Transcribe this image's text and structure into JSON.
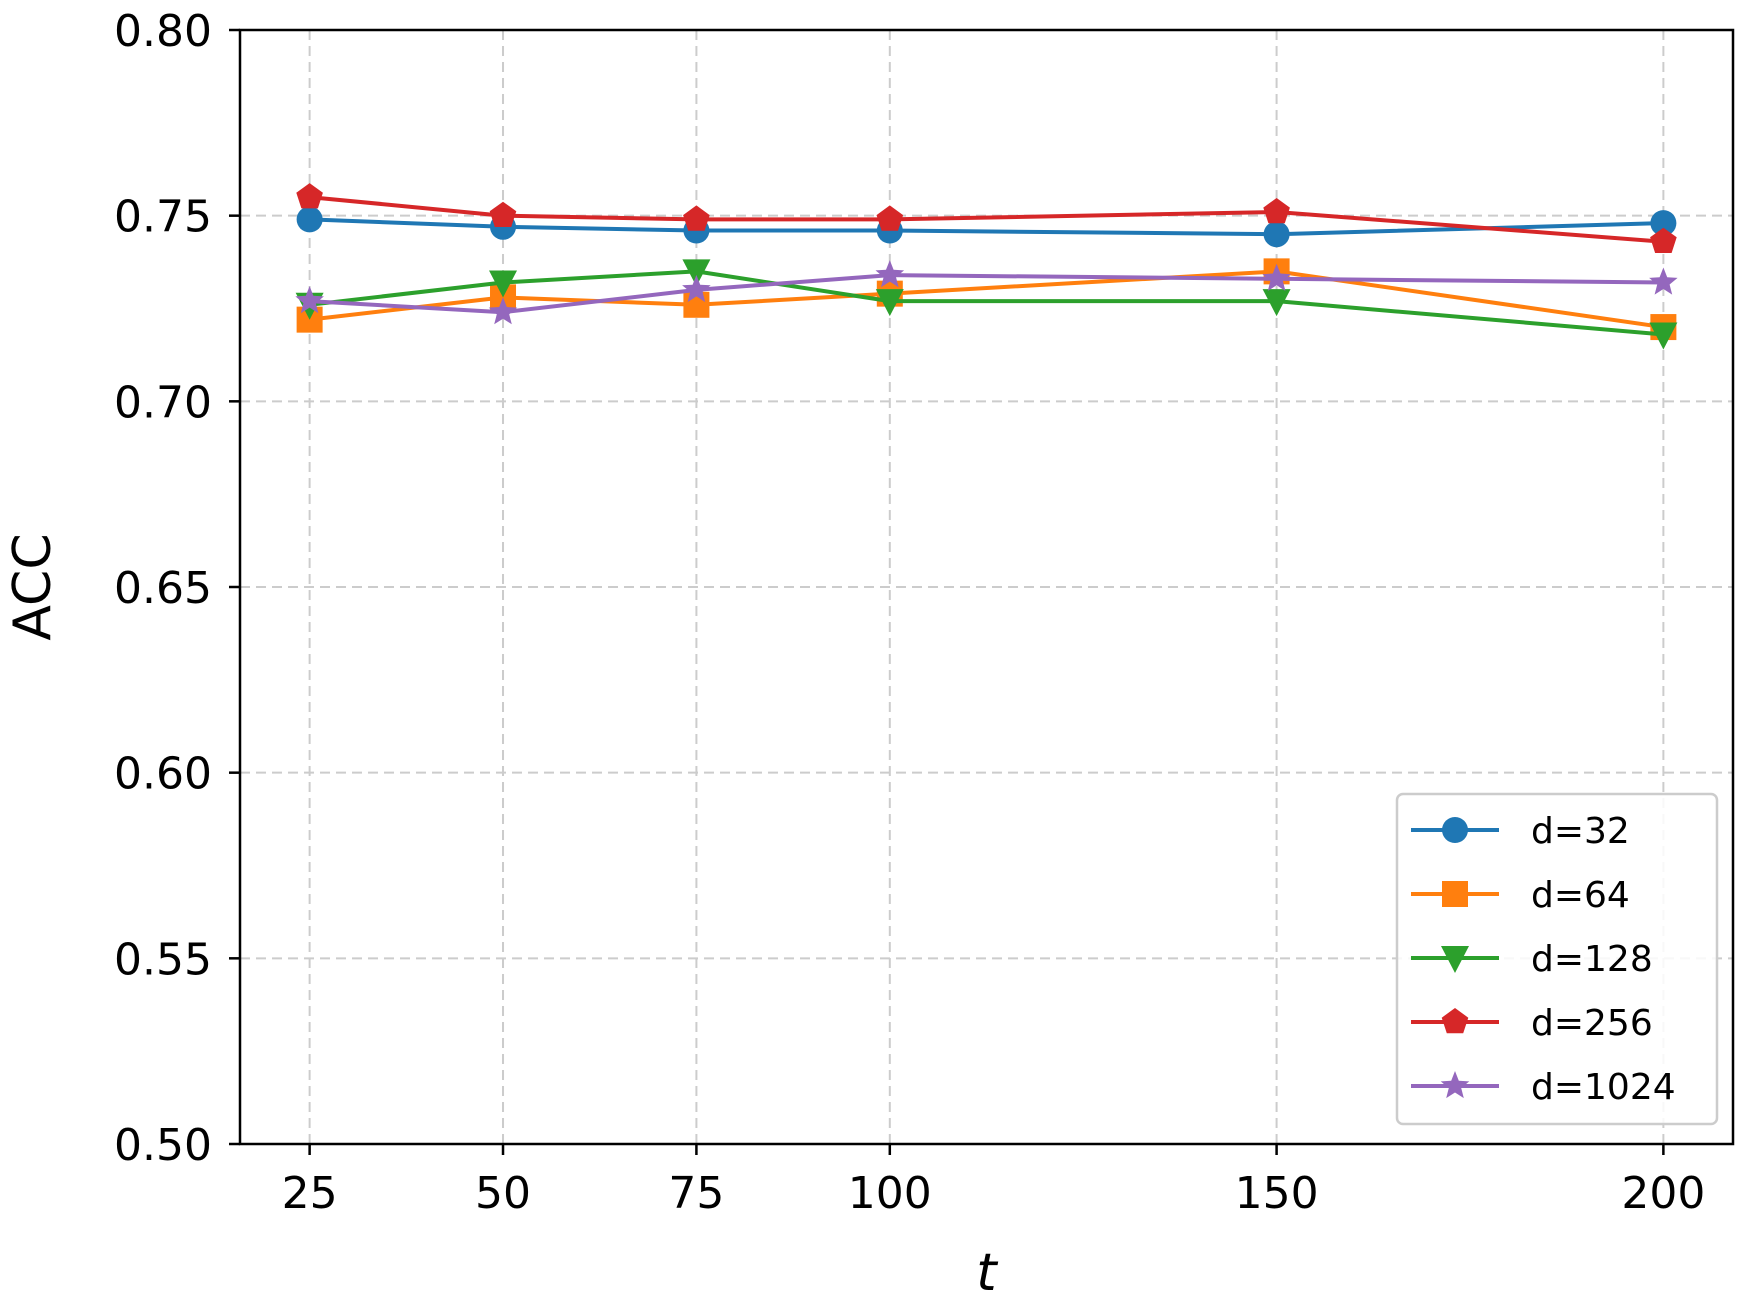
{
  "chart_data": {
    "type": "line",
    "title": "",
    "xlabel": "t",
    "ylabel": "ACC",
    "x": [
      25,
      50,
      75,
      100,
      150,
      200
    ],
    "x_tick_labels": [
      "25",
      "50",
      "75",
      "100",
      "150",
      "200"
    ],
    "xlim": [
      16,
      209
    ],
    "ylim": [
      0.5,
      0.8
    ],
    "y_ticks": [
      0.5,
      0.55,
      0.6,
      0.65,
      0.7,
      0.75,
      0.8
    ],
    "y_tick_labels": [
      "0.50",
      "0.55",
      "0.60",
      "0.65",
      "0.70",
      "0.75",
      "0.80"
    ],
    "grid": true,
    "legend_position": "bottom-right",
    "series": [
      {
        "name": "d=32",
        "color": "#1f77b4",
        "marker": "circle",
        "values": [
          0.749,
          0.747,
          0.746,
          0.746,
          0.745,
          0.748
        ]
      },
      {
        "name": "d=64",
        "color": "#ff7f0e",
        "marker": "square",
        "values": [
          0.722,
          0.728,
          0.726,
          0.729,
          0.735,
          0.72
        ]
      },
      {
        "name": "d=128",
        "color": "#2ca02c",
        "marker": "triangle-down",
        "values": [
          0.726,
          0.732,
          0.735,
          0.727,
          0.727,
          0.718
        ]
      },
      {
        "name": "d=256",
        "color": "#d62728",
        "marker": "pentagon",
        "values": [
          0.755,
          0.75,
          0.749,
          0.749,
          0.751,
          0.743
        ]
      },
      {
        "name": "d=1024",
        "color": "#9467bd",
        "marker": "star",
        "values": [
          0.727,
          0.724,
          0.73,
          0.734,
          0.733,
          0.732
        ]
      }
    ]
  }
}
